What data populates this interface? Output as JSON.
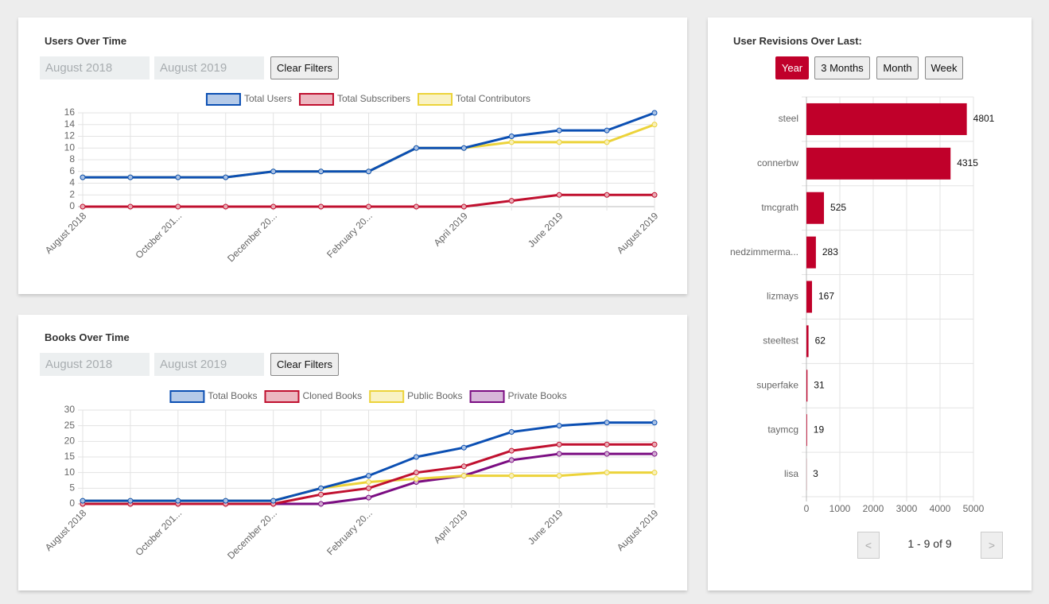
{
  "users_panel": {
    "title": "Users Over Time",
    "from": "August 2018",
    "to": "August 2019",
    "clear": "Clear Filters"
  },
  "books_panel": {
    "title": "Books Over Time",
    "from": "August 2018",
    "to": "August 2019",
    "clear": "Clear Filters"
  },
  "revisions_panel": {
    "title": "User Revisions Over Last:",
    "ranges": [
      "Year",
      "3 Months",
      "Month",
      "Week"
    ],
    "active_range_index": 0,
    "pagination": {
      "prev": "<",
      "status": "1 - 9 of 9",
      "next": ">"
    }
  },
  "chart_data": [
    {
      "type": "line",
      "categories": [
        "August 2018",
        null,
        "October 201...",
        null,
        "December 20...",
        null,
        "February 20...",
        null,
        "April 2019",
        null,
        "June 2019",
        null,
        "August 2019"
      ],
      "series": [
        {
          "name": "Total Users",
          "color": "#0b4fb3",
          "values": [
            5,
            5,
            5,
            5,
            6,
            6,
            6,
            10,
            10,
            12,
            13,
            13,
            16
          ]
        },
        {
          "name": "Total Subscribers",
          "color": "#c0102f",
          "values": [
            0,
            0,
            0,
            0,
            0,
            0,
            0,
            0,
            0,
            1,
            2,
            2,
            2
          ]
        },
        {
          "name": "Total Contributors",
          "color": "#ecd33a",
          "values": [
            5,
            5,
            5,
            5,
            6,
            6,
            6,
            10,
            10,
            11,
            11,
            11,
            14
          ]
        }
      ],
      "ylim": [
        0,
        16
      ],
      "yticks": [
        0,
        2,
        4,
        6,
        8,
        10,
        12,
        14,
        16
      ],
      "grid": true
    },
    {
      "type": "line",
      "categories": [
        "August 2018",
        null,
        "October 201...",
        null,
        "December 20...",
        null,
        "February 20...",
        null,
        "April 2019",
        null,
        "June 2019",
        null,
        "August 2019"
      ],
      "series": [
        {
          "name": "Total Books",
          "color": "#0b4fb3",
          "values": [
            1,
            1,
            1,
            1,
            1,
            5,
            9,
            15,
            18,
            23,
            25,
            26,
            26
          ]
        },
        {
          "name": "Cloned Books",
          "color": "#c0102f",
          "values": [
            0,
            0,
            0,
            0,
            0,
            3,
            5,
            10,
            12,
            17,
            19,
            19,
            19
          ]
        },
        {
          "name": "Public Books",
          "color": "#ecd33a",
          "values": [
            1,
            1,
            1,
            1,
            1,
            5,
            7,
            8,
            9,
            9,
            9,
            10,
            10
          ]
        },
        {
          "name": "Private Books",
          "color": "#7b0d82",
          "values": [
            0,
            0,
            0,
            0,
            0,
            0,
            2,
            7,
            9,
            14,
            16,
            16,
            16
          ]
        }
      ],
      "ylim": [
        0,
        30
      ],
      "yticks": [
        0,
        5,
        10,
        15,
        20,
        25,
        30
      ],
      "grid": true
    },
    {
      "type": "hbar",
      "categories": [
        "steel",
        "connerbw",
        "tmcgrath",
        "nedzimmerma...",
        "lizmays",
        "steeltest",
        "superfake",
        "taymcg",
        "lisa"
      ],
      "values": [
        4801,
        4315,
        525,
        283,
        167,
        62,
        31,
        19,
        3
      ],
      "color": "#c0002a",
      "xlim": [
        0,
        5000
      ],
      "xticks": [
        0,
        1000,
        2000,
        3000,
        4000,
        5000
      ],
      "grid": true
    }
  ]
}
